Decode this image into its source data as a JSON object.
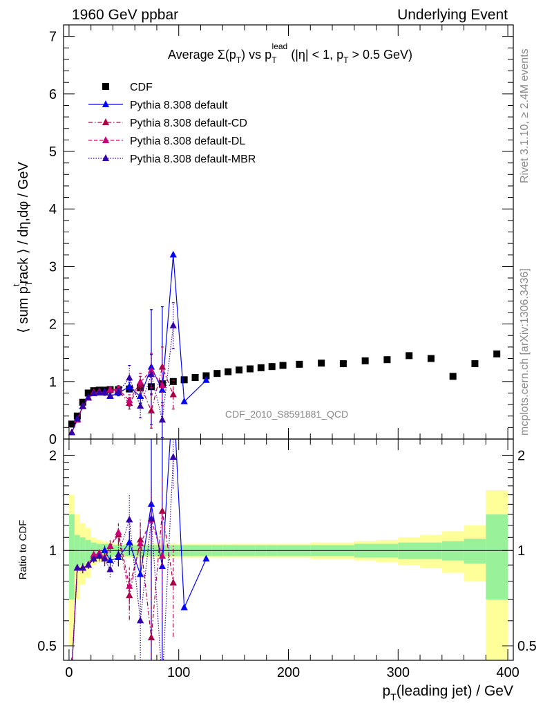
{
  "header": {
    "left": "1960 GeV ppbar",
    "right": "Underlying Event"
  },
  "side_text": {
    "version": "Rivet 3.1.10, ≥ 2.4M events",
    "source": "mcplots.cern.ch [arXiv:1306.3436]"
  },
  "chart_data": {
    "type": "scatter",
    "title": "Average Σ(p_T) vs p_T^lead (|η| < 1, p_T > 0.5 GeV)",
    "watermark": "CDF_2010_S8591881_QCD",
    "xlabel": "p_T(leading jet) / GeV",
    "ylabel": "⟨ sum p_T^track ⟩ / dη,dφ / GeV",
    "ratio_ylabel": "Ratio to CDF",
    "xlim": [
      -5,
      405
    ],
    "ylim": [
      0,
      7.2
    ],
    "ratio_ylim": [
      0.45,
      2.25
    ],
    "ratio_scale": "log",
    "grid": false,
    "legend_position": "top-left",
    "x_ticks": [
      0,
      100,
      200,
      300,
      400
    ],
    "y_ticks": [
      0,
      1,
      2,
      3,
      4,
      5,
      6,
      7
    ],
    "ratio_ticks": [
      0.5,
      1,
      2
    ],
    "bands": {
      "colors": {
        "inner": "#99f299",
        "outer": "#ffff99"
      },
      "edges": [
        0,
        5,
        10,
        15,
        20,
        25,
        30,
        35,
        40,
        45,
        50,
        55,
        60,
        65,
        70,
        75,
        80,
        85,
        90,
        95,
        100,
        110,
        120,
        130,
        140,
        150,
        160,
        170,
        180,
        190,
        200,
        220,
        240,
        260,
        280,
        300,
        320,
        340,
        360,
        380,
        400
      ],
      "inner": [
        0.3,
        0.12,
        0.1,
        0.08,
        0.06,
        0.05,
        0.05,
        0.05,
        0.04,
        0.04,
        0.04,
        0.04,
        0.04,
        0.04,
        0.04,
        0.04,
        0.04,
        0.04,
        0.04,
        0.04,
        0.04,
        0.04,
        0.04,
        0.04,
        0.04,
        0.04,
        0.04,
        0.04,
        0.04,
        0.04,
        0.04,
        0.04,
        0.04,
        0.05,
        0.05,
        0.06,
        0.06,
        0.07,
        0.09,
        0.3
      ],
      "outer": [
        0.5,
        0.3,
        0.22,
        0.18,
        0.1,
        0.08,
        0.07,
        0.06,
        0.05,
        0.05,
        0.05,
        0.05,
        0.05,
        0.05,
        0.05,
        0.05,
        0.05,
        0.05,
        0.05,
        0.05,
        0.05,
        0.05,
        0.05,
        0.05,
        0.05,
        0.05,
        0.05,
        0.05,
        0.05,
        0.05,
        0.05,
        0.06,
        0.06,
        0.07,
        0.08,
        0.1,
        0.12,
        0.15,
        0.2,
        0.55
      ]
    },
    "series": [
      {
        "name": "CDF",
        "style": "data",
        "color": "#000000",
        "x": [
          2.5,
          7.5,
          12.5,
          17.5,
          22.5,
          27.5,
          32.5,
          37.5,
          45,
          55,
          65,
          75,
          85,
          95,
          105,
          115,
          125,
          135,
          145,
          155,
          165,
          175,
          185,
          195,
          210,
          230,
          250,
          270,
          290,
          310,
          330,
          350,
          370,
          390
        ],
        "y": [
          0.26,
          0.4,
          0.64,
          0.8,
          0.84,
          0.85,
          0.85,
          0.86,
          0.86,
          0.87,
          0.89,
          0.91,
          0.96,
          1.0,
          1.03,
          1.07,
          1.1,
          1.14,
          1.17,
          1.2,
          1.22,
          1.24,
          1.26,
          1.28,
          1.3,
          1.32,
          1.31,
          1.36,
          1.38,
          1.45,
          1.4,
          1.09,
          1.31,
          1.48
        ]
      },
      {
        "name": "Pythia 8.308 default",
        "color": "#0000ff",
        "dash": "",
        "x": [
          2.5,
          7.5,
          12.5,
          17.5,
          22.5,
          27.5,
          32.5,
          37.5,
          45,
          55,
          65,
          75,
          85,
          95,
          105,
          125
        ],
        "y": [
          0.11,
          0.35,
          0.56,
          0.72,
          0.79,
          0.8,
          0.82,
          0.74,
          0.8,
          0.91,
          0.74,
          1.25,
          0.85,
          3.2,
          0.65,
          1.02
        ],
        "err": [
          0.01,
          0.01,
          0.02,
          0.02,
          0.02,
          0.03,
          0.03,
          0.03,
          0.05,
          0.08,
          0.12,
          1.0,
          1.45,
          0,
          0,
          0
        ],
        "ratio": [
          0.42,
          0.88,
          0.88,
          0.9,
          0.94,
          0.97,
          1.0,
          0.93,
          0.95,
          1.06,
          0.84,
          1.4,
          0.89,
          3.2,
          0.66,
          0.94
        ]
      },
      {
        "name": "Pythia 8.308 default-CD",
        "color": "#aa0044",
        "dash": "6,3,1.5,3",
        "x": [
          2.5,
          7.5,
          12.5,
          17.5,
          22.5,
          27.5,
          32.5,
          37.5,
          45,
          55,
          65,
          75,
          85,
          95
        ],
        "y": [
          0.11,
          0.33,
          0.56,
          0.71,
          0.8,
          0.81,
          0.8,
          0.85,
          0.85,
          0.62,
          0.94,
          0.49,
          1.25,
          0.77
        ],
        "err": [
          0.01,
          0.01,
          0.02,
          0.02,
          0.02,
          0.03,
          0.04,
          0.04,
          0.06,
          0.1,
          0.15,
          0.3,
          0.35,
          0.25
        ],
        "ratio": [
          0.42,
          0.88,
          0.88,
          0.9,
          0.96,
          0.97,
          0.94,
          1.03,
          1.12,
          0.72,
          1.08,
          0.53,
          1.33,
          0.79
        ]
      },
      {
        "name": "Pythia 8.308 default-DL",
        "color": "#cc0077",
        "dash": "5,3",
        "x": [
          2.5,
          7.5,
          12.5,
          17.5,
          22.5,
          27.5,
          32.5,
          37.5,
          45,
          55,
          65,
          75,
          85
        ],
        "y": [
          0.11,
          0.34,
          0.57,
          0.71,
          0.81,
          0.82,
          0.8,
          0.86,
          0.87,
          0.67,
          0.99,
          1.19,
          0.93
        ],
        "err": [
          0.01,
          0.01,
          0.02,
          0.02,
          0.02,
          0.03,
          0.04,
          0.04,
          0.06,
          0.1,
          0.15,
          0.3,
          0.35
        ],
        "ratio": [
          0.42,
          0.88,
          0.88,
          0.9,
          0.97,
          0.98,
          0.95,
          1.03,
          1.14,
          0.77,
          1.05,
          1.25,
          0.96
        ]
      },
      {
        "name": "Pythia 8.308 default-MBR",
        "color": "#3300aa",
        "dash": "1.5,2",
        "x": [
          2.5,
          7.5,
          12.5,
          17.5,
          22.5,
          27.5,
          32.5,
          37.5,
          45,
          55,
          65,
          75,
          85,
          95
        ],
        "y": [
          0.11,
          0.35,
          0.57,
          0.72,
          0.79,
          0.8,
          0.8,
          0.75,
          0.82,
          1.06,
          0.57,
          1.12,
          0.33,
          1.97
        ],
        "err": [
          0.01,
          0.01,
          0.02,
          0.02,
          0.02,
          0.03,
          0.04,
          0.04,
          0.06,
          0.22,
          0.2,
          0.35,
          0.3,
          0.4
        ],
        "ratio": [
          0.42,
          0.88,
          0.88,
          0.9,
          0.94,
          0.96,
          0.94,
          0.87,
          0.97,
          1.25,
          0.6,
          1.26,
          0.38,
          1.97
        ]
      }
    ]
  }
}
